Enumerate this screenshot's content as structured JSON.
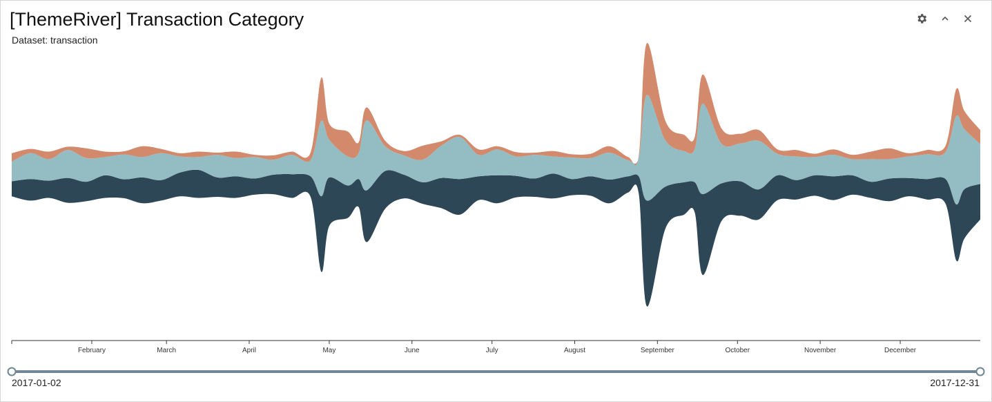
{
  "header": {
    "title": "[ThemeRiver] Transaction Category",
    "subtitle": "Dataset: transaction"
  },
  "controls": [
    {
      "name": "settings",
      "icon": "gear-icon"
    },
    {
      "name": "collapse",
      "icon": "chevron-up-icon"
    },
    {
      "name": "close",
      "icon": "close-icon"
    }
  ],
  "range": {
    "start_label": "2017-01-02",
    "end_label": "2017-12-31"
  },
  "chart_data": {
    "type": "area",
    "layout": "themeriver",
    "x_start": "2017-01-02",
    "x_end": "2017-12-31",
    "x_ticks": [
      "February",
      "March",
      "April",
      "May",
      "June",
      "July",
      "August",
      "September",
      "October",
      "November",
      "December"
    ],
    "x_tick_dates": [
      "2017-02-01",
      "2017-03-01",
      "2017-04-01",
      "2017-05-01",
      "2017-06-01",
      "2017-07-01",
      "2017-08-01",
      "2017-09-01",
      "2017-10-01",
      "2017-11-01",
      "2017-12-01"
    ],
    "colors": [
      "#2e4756",
      "#93bcc3",
      "#d38a6c"
    ],
    "series": [
      {
        "dates": [
          "2017-01-02",
          "2017-01-09",
          "2017-01-16",
          "2017-01-23",
          "2017-01-30",
          "2017-02-06",
          "2017-02-13",
          "2017-02-20",
          "2017-02-27",
          "2017-03-06",
          "2017-03-13",
          "2017-03-20",
          "2017-03-27",
          "2017-04-03",
          "2017-04-10",
          "2017-04-17",
          "2017-04-24",
          "2017-04-28",
          "2017-05-01",
          "2017-05-08",
          "2017-05-12",
          "2017-05-15",
          "2017-05-22",
          "2017-05-29",
          "2017-06-05",
          "2017-06-12",
          "2017-06-19",
          "2017-06-26",
          "2017-07-03",
          "2017-07-10",
          "2017-07-17",
          "2017-07-24",
          "2017-07-31",
          "2017-08-07",
          "2017-08-14",
          "2017-08-21",
          "2017-08-25",
          "2017-08-28",
          "2017-09-04",
          "2017-09-11",
          "2017-09-15",
          "2017-09-18",
          "2017-09-25",
          "2017-10-02",
          "2017-10-09",
          "2017-10-16",
          "2017-10-23",
          "2017-10-30",
          "2017-11-06",
          "2017-11-13",
          "2017-11-20",
          "2017-11-27",
          "2017-12-04",
          "2017-12-11",
          "2017-12-18",
          "2017-12-22",
          "2017-12-25",
          "2017-12-31"
        ],
        "values": [
          28,
          40,
          32,
          46,
          36,
          42,
          35,
          48,
          38,
          44,
          52,
          36,
          40,
          30,
          36,
          44,
          38,
          140,
          90,
          60,
          52,
          96,
          70,
          44,
          40,
          56,
          66,
          44,
          52,
          40,
          34,
          46,
          30,
          36,
          44,
          30,
          32,
          196,
          78,
          60,
          56,
          150,
          70,
          64,
          56,
          46,
          36,
          38,
          44,
          36,
          30,
          42,
          34,
          38,
          46,
          104,
          92,
          66
        ]
      },
      {
        "dates": [
          "2017-01-02",
          "2017-01-09",
          "2017-01-16",
          "2017-01-23",
          "2017-01-30",
          "2017-02-06",
          "2017-02-13",
          "2017-02-20",
          "2017-02-27",
          "2017-03-06",
          "2017-03-13",
          "2017-03-20",
          "2017-03-27",
          "2017-04-03",
          "2017-04-10",
          "2017-04-17",
          "2017-04-24",
          "2017-04-28",
          "2017-05-01",
          "2017-05-08",
          "2017-05-12",
          "2017-05-15",
          "2017-05-22",
          "2017-05-29",
          "2017-06-05",
          "2017-06-12",
          "2017-06-19",
          "2017-06-26",
          "2017-07-03",
          "2017-07-10",
          "2017-07-17",
          "2017-07-24",
          "2017-07-31",
          "2017-08-07",
          "2017-08-14",
          "2017-08-21",
          "2017-08-25",
          "2017-08-28",
          "2017-09-04",
          "2017-09-11",
          "2017-09-15",
          "2017-09-18",
          "2017-09-25",
          "2017-10-02",
          "2017-10-09",
          "2017-10-16",
          "2017-10-23",
          "2017-10-30",
          "2017-11-06",
          "2017-11-13",
          "2017-11-20",
          "2017-11-27",
          "2017-12-04",
          "2017-12-11",
          "2017-12-18",
          "2017-12-22",
          "2017-12-25",
          "2017-12-31"
        ],
        "values": [
          36,
          48,
          40,
          52,
          44,
          34,
          46,
          38,
          50,
          30,
          24,
          42,
          34,
          40,
          28,
          36,
          30,
          140,
          70,
          54,
          48,
          130,
          46,
          36,
          42,
          60,
          78,
          40,
          48,
          36,
          44,
          32,
          40,
          34,
          50,
          30,
          34,
          196,
          86,
          58,
          62,
          168,
          74,
          70,
          90,
          40,
          44,
          34,
          40,
          30,
          42,
          36,
          40,
          46,
          50,
          164,
          112,
          74
        ]
      },
      {
        "dates": [
          "2017-01-02",
          "2017-01-09",
          "2017-01-16",
          "2017-01-23",
          "2017-01-30",
          "2017-02-06",
          "2017-02-13",
          "2017-02-20",
          "2017-02-27",
          "2017-03-06",
          "2017-03-13",
          "2017-03-20",
          "2017-03-27",
          "2017-04-03",
          "2017-04-10",
          "2017-04-17",
          "2017-04-24",
          "2017-04-28",
          "2017-05-01",
          "2017-05-08",
          "2017-05-12",
          "2017-05-15",
          "2017-05-22",
          "2017-05-29",
          "2017-06-05",
          "2017-06-12",
          "2017-06-19",
          "2017-06-26",
          "2017-07-03",
          "2017-07-10",
          "2017-07-17",
          "2017-07-24",
          "2017-07-31",
          "2017-08-07",
          "2017-08-14",
          "2017-08-21",
          "2017-08-25",
          "2017-08-28",
          "2017-09-04",
          "2017-09-11",
          "2017-09-15",
          "2017-09-18",
          "2017-09-25",
          "2017-10-02",
          "2017-10-09",
          "2017-10-16",
          "2017-10-23",
          "2017-10-30",
          "2017-11-06",
          "2017-11-13",
          "2017-11-20",
          "2017-11-27",
          "2017-12-04",
          "2017-12-11",
          "2017-12-18",
          "2017-12-22",
          "2017-12-25",
          "2017-12-31"
        ],
        "values": [
          16,
          8,
          14,
          6,
          18,
          10,
          6,
          20,
          8,
          6,
          10,
          4,
          12,
          4,
          8,
          6,
          14,
          80,
          30,
          46,
          20,
          24,
          10,
          8,
          26,
          8,
          4,
          10,
          6,
          8,
          4,
          10,
          6,
          8,
          12,
          6,
          4,
          96,
          36,
          30,
          22,
          54,
          28,
          18,
          20,
          8,
          12,
          6,
          10,
          8,
          14,
          20,
          6,
          8,
          12,
          50,
          34,
          26
        ]
      }
    ]
  }
}
